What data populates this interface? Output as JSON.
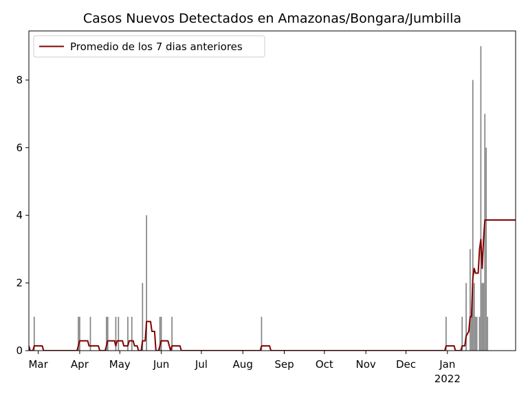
{
  "chart_data": {
    "type": "bar",
    "title": "Casos Nuevos Detectados en Amazonas/Bongara/Jumbilla",
    "xlabel": "",
    "ylabel": "",
    "ylim": [
      0,
      9.45
    ],
    "xlim": [
      "2021-02-22",
      "2022-02-21"
    ],
    "y_ticks": [
      0,
      2,
      4,
      6,
      8
    ],
    "x_ticks": [
      {
        "date": "2021-03-01",
        "label": "Mar",
        "sublabel": ""
      },
      {
        "date": "2021-04-01",
        "label": "Apr",
        "sublabel": ""
      },
      {
        "date": "2021-05-01",
        "label": "May",
        "sublabel": ""
      },
      {
        "date": "2021-06-01",
        "label": "Jun",
        "sublabel": ""
      },
      {
        "date": "2021-07-01",
        "label": "Jul",
        "sublabel": ""
      },
      {
        "date": "2021-08-01",
        "label": "Aug",
        "sublabel": ""
      },
      {
        "date": "2021-09-01",
        "label": "Sep",
        "sublabel": ""
      },
      {
        "date": "2021-10-01",
        "label": "Oct",
        "sublabel": ""
      },
      {
        "date": "2021-11-01",
        "label": "Nov",
        "sublabel": ""
      },
      {
        "date": "2021-12-01",
        "label": "Dec",
        "sublabel": ""
      },
      {
        "date": "2022-01-01",
        "label": "Jan",
        "sublabel": "2022"
      }
    ],
    "bars": {
      "name": "",
      "color": "#808080",
      "points": [
        [
          "2021-02-26",
          1
        ],
        [
          "2021-03-31",
          1
        ],
        [
          "2021-04-01",
          1
        ],
        [
          "2021-04-09",
          1
        ],
        [
          "2021-04-21",
          1
        ],
        [
          "2021-04-22",
          1
        ],
        [
          "2021-04-28",
          1
        ],
        [
          "2021-04-30",
          1
        ],
        [
          "2021-05-07",
          1
        ],
        [
          "2021-05-10",
          1
        ],
        [
          "2021-05-18",
          2
        ],
        [
          "2021-05-21",
          4
        ],
        [
          "2021-05-31",
          1
        ],
        [
          "2021-06-01",
          1
        ],
        [
          "2021-06-09",
          1
        ],
        [
          "2021-08-15",
          1
        ],
        [
          "2021-12-31",
          1
        ],
        [
          "2022-01-12",
          1
        ],
        [
          "2022-01-15",
          2
        ],
        [
          "2022-01-18",
          3
        ],
        [
          "2022-01-19",
          1
        ],
        [
          "2022-01-20",
          8
        ],
        [
          "2022-01-21",
          2
        ],
        [
          "2022-01-22",
          1
        ],
        [
          "2022-01-23",
          1
        ],
        [
          "2022-01-25",
          1
        ],
        [
          "2022-01-26",
          9
        ],
        [
          "2022-01-27",
          2
        ],
        [
          "2022-01-28",
          2
        ],
        [
          "2022-01-29",
          7
        ],
        [
          "2022-01-30",
          6
        ],
        [
          "2022-01-31",
          1
        ]
      ]
    },
    "series": [
      {
        "name": "Promedio de los 7 dias anteriores",
        "color": "#800000",
        "points": [
          [
            "2021-02-22",
            0.14
          ],
          [
            "2021-02-23",
            0.0
          ],
          [
            "2021-02-24",
            0.0
          ],
          [
            "2021-02-25",
            0.0
          ],
          [
            "2021-02-26",
            0.14
          ],
          [
            "2021-03-04",
            0.14
          ],
          [
            "2021-03-05",
            0.0
          ],
          [
            "2021-03-30",
            0.0
          ],
          [
            "2021-03-31",
            0.14
          ],
          [
            "2021-04-01",
            0.29
          ],
          [
            "2021-04-07",
            0.29
          ],
          [
            "2021-04-08",
            0.14
          ],
          [
            "2021-04-09",
            0.14
          ],
          [
            "2021-04-15",
            0.14
          ],
          [
            "2021-04-16",
            0.0
          ],
          [
            "2021-04-20",
            0.0
          ],
          [
            "2021-04-21",
            0.14
          ],
          [
            "2021-04-22",
            0.29
          ],
          [
            "2021-04-27",
            0.29
          ],
          [
            "2021-04-28",
            0.14
          ],
          [
            "2021-04-29",
            0.29
          ],
          [
            "2021-05-03",
            0.29
          ],
          [
            "2021-05-04",
            0.14
          ],
          [
            "2021-05-07",
            0.14
          ],
          [
            "2021-05-08",
            0.29
          ],
          [
            "2021-05-11",
            0.29
          ],
          [
            "2021-05-12",
            0.14
          ],
          [
            "2021-05-14",
            0.14
          ],
          [
            "2021-05-15",
            0.0
          ],
          [
            "2021-05-17",
            0.0
          ],
          [
            "2021-05-18",
            0.29
          ],
          [
            "2021-05-20",
            0.29
          ],
          [
            "2021-05-21",
            0.86
          ],
          [
            "2021-05-24",
            0.86
          ],
          [
            "2021-05-25",
            0.57
          ],
          [
            "2021-05-27",
            0.57
          ],
          [
            "2021-05-28",
            0.0
          ],
          [
            "2021-05-30",
            0.0
          ],
          [
            "2021-05-31",
            0.14
          ],
          [
            "2021-06-01",
            0.29
          ],
          [
            "2021-06-06",
            0.29
          ],
          [
            "2021-06-07",
            0.14
          ],
          [
            "2021-06-08",
            0.0
          ],
          [
            "2021-06-09",
            0.14
          ],
          [
            "2021-06-15",
            0.14
          ],
          [
            "2021-06-16",
            0.0
          ],
          [
            "2021-08-14",
            0.0
          ],
          [
            "2021-08-15",
            0.14
          ],
          [
            "2021-08-21",
            0.14
          ],
          [
            "2021-08-22",
            0.0
          ],
          [
            "2021-12-30",
            0.0
          ],
          [
            "2021-12-31",
            0.14
          ],
          [
            "2022-01-06",
            0.14
          ],
          [
            "2022-01-07",
            0.0
          ],
          [
            "2022-01-11",
            0.0
          ],
          [
            "2022-01-12",
            0.14
          ],
          [
            "2022-01-14",
            0.14
          ],
          [
            "2022-01-15",
            0.43
          ],
          [
            "2022-01-17",
            0.57
          ],
          [
            "2022-01-18",
            1.0
          ],
          [
            "2022-01-19",
            1.0
          ],
          [
            "2022-01-20",
            2.14
          ],
          [
            "2022-01-21",
            2.43
          ],
          [
            "2022-01-22",
            2.29
          ],
          [
            "2022-01-24",
            2.29
          ],
          [
            "2022-01-25",
            3.0
          ],
          [
            "2022-01-26",
            3.29
          ],
          [
            "2022-01-27",
            2.43
          ],
          [
            "2022-01-28",
            3.29
          ],
          [
            "2022-01-29",
            3.86
          ],
          [
            "2022-02-21",
            3.86
          ]
        ]
      }
    ],
    "legend": {
      "position": "top-left"
    }
  }
}
